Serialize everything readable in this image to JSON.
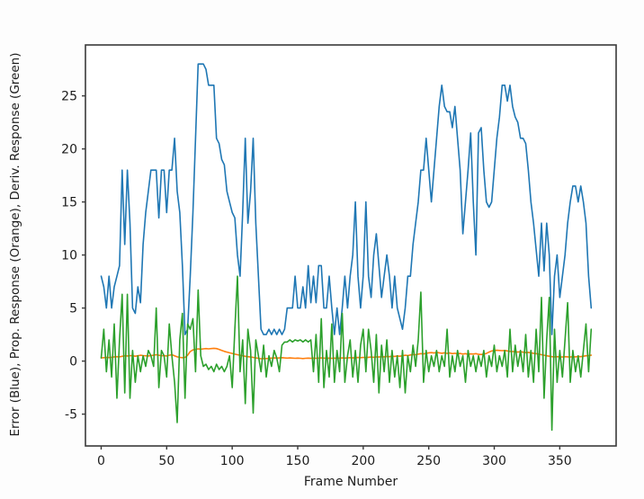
{
  "figure": {
    "xlabel": "Frame Number",
    "ylabel": "Error (Blue), Prop. Response (Orange), Deriv. Response (Green)"
  },
  "chart_data": {
    "type": "line",
    "title": "",
    "xlabel": "Frame Number",
    "ylabel": "Error (Blue), Prop. Response (Orange), Deriv. Response (Green)",
    "grid": false,
    "legend": "none",
    "xlim": [
      -12,
      393
    ],
    "ylim": [
      -8,
      29.8
    ],
    "xticks": [
      0,
      50,
      100,
      150,
      200,
      250,
      300,
      350
    ],
    "yticks": [
      -5,
      0,
      5,
      10,
      15,
      20,
      25
    ],
    "x_start": 0,
    "x_step": 2,
    "series": [
      {
        "name": "Error",
        "color": "#1f77b4",
        "values": [
          8,
          7,
          5,
          8,
          5,
          7,
          8,
          9,
          18,
          11,
          18,
          13,
          5,
          4.5,
          7,
          5.5,
          11,
          14,
          16,
          18,
          18,
          18,
          13.5,
          18,
          18,
          14,
          18,
          18,
          21,
          16,
          14,
          9,
          2.5,
          3,
          8,
          14,
          21,
          28,
          28,
          28,
          27.5,
          26,
          26,
          26,
          21,
          20.5,
          19,
          18.5,
          16,
          15,
          14,
          13.5,
          10,
          8,
          14,
          21,
          13,
          16,
          21,
          13,
          8,
          3,
          2.5,
          2.5,
          3,
          2.5,
          3,
          2.5,
          3,
          2.5,
          3,
          5,
          5,
          5,
          8,
          5,
          5,
          7,
          5,
          9,
          5.5,
          8,
          5.5,
          9,
          9,
          5,
          5,
          8,
          5,
          2.5,
          5,
          2.5,
          5,
          8,
          5,
          8,
          10,
          15,
          8,
          5,
          8,
          15,
          8,
          6,
          10,
          12,
          9,
          6,
          8,
          10,
          8,
          5,
          8,
          5,
          4,
          3,
          5,
          8,
          8,
          11,
          13,
          15,
          18,
          18,
          21,
          18,
          15,
          18,
          21,
          24,
          26,
          24,
          23.5,
          23.5,
          22,
          24,
          21,
          18,
          12,
          15,
          18,
          21.5,
          15,
          10,
          21.5,
          22,
          18,
          15,
          14.5,
          15,
          18,
          21,
          23,
          26,
          26,
          24.5,
          26,
          24,
          23,
          22.5,
          21,
          21,
          20.5,
          18,
          15,
          13,
          10.5,
          8,
          13,
          8.5,
          13,
          10,
          2.5,
          8,
          10,
          6,
          8,
          10,
          13,
          15,
          16.5,
          16.5,
          15,
          16.5,
          15,
          13,
          8,
          5
        ]
      },
      {
        "name": "Prop. Response",
        "color": "#ff7f0e",
        "values": [
          0.3,
          0.32,
          0.35,
          0.33,
          0.36,
          0.4,
          0.42,
          0.4,
          0.45,
          0.5,
          0.48,
          0.52,
          0.5,
          0.46,
          0.5,
          0.55,
          0.52,
          0.5,
          0.48,
          0.52,
          0.55,
          0.6,
          0.55,
          0.5,
          0.52,
          0.48,
          0.55,
          0.6,
          0.5,
          0.4,
          0.35,
          0.32,
          0.35,
          0.55,
          0.9,
          1.05,
          1.1,
          1.15,
          1.12,
          1.15,
          1.18,
          1.15,
          1.18,
          1.2,
          1.18,
          1.1,
          1,
          0.92,
          0.85,
          0.78,
          0.72,
          0.65,
          0.6,
          0.55,
          0.5,
          0.45,
          0.42,
          0.38,
          0.35,
          0.3,
          0.26,
          0.22,
          0.25,
          0.24,
          0.26,
          0.28,
          0.3,
          0.28,
          0.3,
          0.32,
          0.3,
          0.28,
          0.3,
          0.28,
          0.26,
          0.28,
          0.26,
          0.24,
          0.26,
          0.28,
          0.26,
          0.28,
          0.26,
          0.28,
          0.3,
          0.28,
          0.26,
          0.28,
          0.26,
          0.28,
          0.26,
          0.28,
          0.3,
          0.28,
          0.3,
          0.32,
          0.3,
          0.32,
          0.34,
          0.32,
          0.35,
          0.33,
          0.36,
          0.38,
          0.36,
          0.4,
          0.38,
          0.42,
          0.4,
          0.44,
          0.42,
          0.46,
          0.44,
          0.48,
          0.46,
          0.5,
          0.55,
          0.52,
          0.58,
          0.62,
          0.6,
          0.65,
          0.7,
          0.68,
          0.72,
          0.78,
          0.8,
          0.76,
          0.82,
          0.78,
          0.74,
          0.78,
          0.72,
          0.76,
          0.7,
          0.74,
          0.68,
          0.72,
          0.66,
          0.7,
          0.64,
          0.68,
          0.66,
          0.7,
          0.64,
          0.62,
          0.66,
          0.72,
          0.85,
          0.95,
          1,
          1.02,
          1,
          0.98,
          1,
          0.96,
          0.92,
          0.9,
          0.88,
          0.85,
          0.88,
          0.84,
          0.8,
          0.82,
          0.78,
          0.74,
          0.7,
          0.65,
          0.6,
          0.55,
          0.5,
          0.46,
          0.42,
          0.4,
          0.42,
          0.4,
          0.38,
          0.42,
          0.4,
          0.38,
          0.42,
          0.4,
          0.44,
          0.42,
          0.46,
          0.5,
          0.52,
          0.55
        ]
      },
      {
        "name": "Deriv. Response",
        "color": "#2ca02c",
        "values": [
          0.3,
          3,
          -1,
          2,
          -1.5,
          3.5,
          -3.5,
          2,
          6.3,
          -3,
          6.3,
          -3.5,
          1,
          -2,
          0.5,
          -1,
          0.5,
          -0.5,
          1,
          0.5,
          -0.5,
          5,
          -2.5,
          1,
          0.5,
          -1.5,
          3.5,
          0.5,
          -2,
          -5.8,
          2,
          4.5,
          -3.5,
          3.5,
          3,
          4,
          -1,
          6.7,
          0.5,
          -0.5,
          -0.3,
          -0.8,
          -0.5,
          -1,
          -0.3,
          -0.8,
          -0.5,
          -1,
          -0.5,
          0.5,
          -2.5,
          3,
          8,
          -1,
          2,
          -4,
          3,
          1,
          -4.9,
          2,
          0.5,
          -1,
          1.5,
          -1.5,
          0.5,
          -0.5,
          1,
          0.3,
          -1,
          1.5,
          1.8,
          1.8,
          2,
          1.8,
          2,
          1.9,
          2,
          1.8,
          2,
          1.8,
          2,
          -1,
          2.5,
          -2,
          4,
          -2.5,
          1,
          -1.5,
          3.5,
          -2,
          1,
          -1,
          4.5,
          -2,
          0.5,
          2,
          -1.5,
          1,
          -2,
          1.5,
          3,
          -1,
          3,
          1,
          -2,
          2.5,
          -3,
          1.5,
          -1,
          2,
          -2,
          1,
          -1.5,
          0.5,
          -2.5,
          1,
          -3,
          0.5,
          -1,
          1.5,
          -0.5,
          2,
          6.5,
          -2,
          1,
          -1,
          0.5,
          -0.5,
          1,
          -1,
          0.5,
          -0.5,
          3,
          -1.5,
          0.5,
          -1,
          1,
          -0.5,
          0.5,
          -2,
          1,
          -0.5,
          0.5,
          -1,
          0.5,
          -0.5,
          1,
          -1.5,
          0.5,
          -0.5,
          1.5,
          -1,
          0.5,
          -0.5,
          1,
          -1.5,
          3,
          -1,
          1.5,
          -0.5,
          1,
          -1,
          2.5,
          -1.5,
          1,
          -2,
          3,
          -1,
          6,
          -3.5,
          2,
          6,
          -6.5,
          3,
          -2,
          1,
          -1.5,
          2,
          5.5,
          -2,
          1,
          -1,
          0.5,
          -1.5,
          1,
          3.5,
          -1,
          3
        ]
      }
    ]
  }
}
